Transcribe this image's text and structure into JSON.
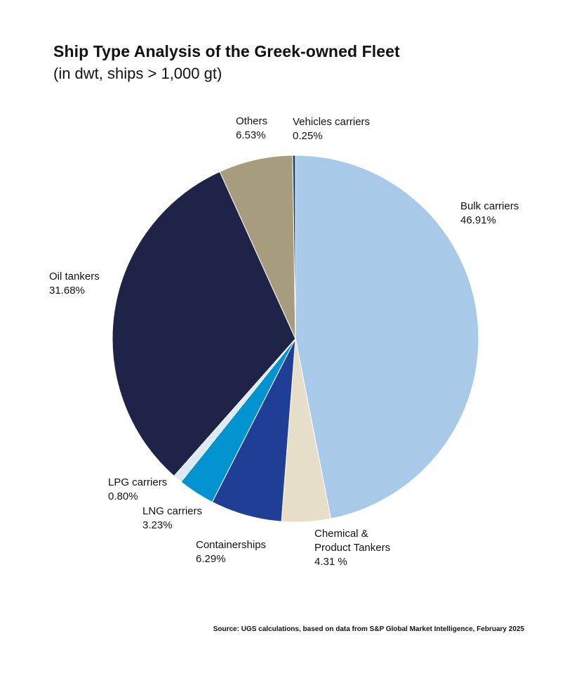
{
  "chart_data": {
    "type": "pie",
    "title": "Ship Type Analysis of the Greek-owned Fleet",
    "subtitle": "(in dwt, ships > 1,000 gt)",
    "source": "Source: UGS calculations, based on data from S&P Global Market Intelligence, February 2025",
    "slices": [
      {
        "key": "bulk",
        "label_lines": [
          "Bulk carriers"
        ],
        "value_text": "46.91%",
        "value": 46.91,
        "color": "#a8cae8"
      },
      {
        "key": "chemical",
        "label_lines": [
          "Chemical &",
          "Product Tankers"
        ],
        "value_text": "4.31 %",
        "value": 4.31,
        "color": "#e6dec8"
      },
      {
        "key": "containerships",
        "label_lines": [
          "Containerships"
        ],
        "value_text": "6.29%",
        "value": 6.29,
        "color": "#1f3f96"
      },
      {
        "key": "lng",
        "label_lines": [
          "LNG carriers"
        ],
        "value_text": "3.23%",
        "value": 3.23,
        "color": "#0093d0"
      },
      {
        "key": "lpg",
        "label_lines": [
          "LPG carriers"
        ],
        "value_text": "0.80%",
        "value": 0.8,
        "color": "#dde9f3"
      },
      {
        "key": "oil",
        "label_lines": [
          "Oil tankers"
        ],
        "value_text": "31.68%",
        "value": 31.68,
        "color": "#1e2347"
      },
      {
        "key": "others",
        "label_lines": [
          "Others"
        ],
        "value_text": "6.53%",
        "value": 6.53,
        "color": "#a89c7e"
      },
      {
        "key": "vehicles",
        "label_lines": [
          "Vehicles carriers"
        ],
        "value_text": "0.25%",
        "value": 0.25,
        "color": "#1a4a6e"
      }
    ]
  }
}
